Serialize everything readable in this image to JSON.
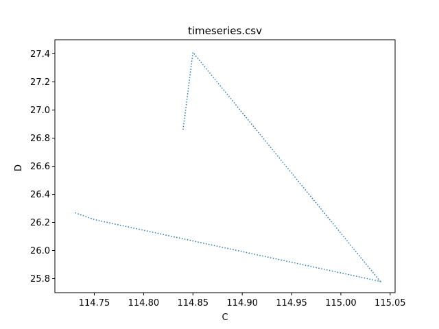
{
  "chart_data": {
    "type": "line",
    "title": "timeseries.csv",
    "xlabel": "C",
    "ylabel": "D",
    "xlim": [
      114.71,
      115.055
    ],
    "ylim": [
      25.7,
      27.5
    ],
    "xticks": [
      114.75,
      114.8,
      114.85,
      114.9,
      114.95,
      115.0,
      115.05
    ],
    "xtick_labels": [
      "114.75",
      "114.80",
      "114.85",
      "114.90",
      "114.95",
      "115.00",
      "115.05"
    ],
    "yticks": [
      25.8,
      26.0,
      26.2,
      26.4,
      26.6,
      26.8,
      27.0,
      27.2,
      27.4
    ],
    "ytick_labels": [
      "25.8",
      "26.0",
      "26.2",
      "26.4",
      "26.6",
      "26.8",
      "27.0",
      "27.2",
      "27.4"
    ],
    "grid": false,
    "line_style": "dotted",
    "line_color": "#1f77b4",
    "series": [
      {
        "x": [
          114.84,
          114.85,
          115.04,
          114.75,
          114.73
        ],
        "y": [
          26.86,
          27.41,
          25.78,
          26.22,
          26.27
        ]
      }
    ]
  }
}
